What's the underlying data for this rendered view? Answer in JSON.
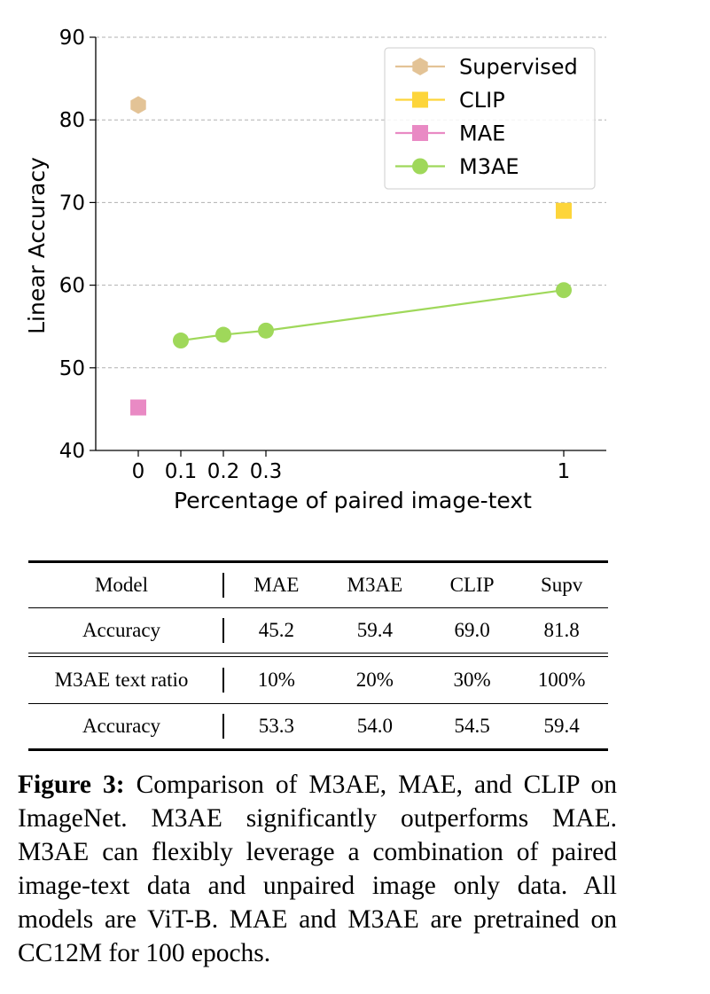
{
  "chart_data": {
    "type": "scatter",
    "xlabel": "Percentage of paired image-text",
    "ylabel": "Linear Accuracy",
    "xlim": [
      -0.1,
      1.1
    ],
    "ylim": [
      40,
      90
    ],
    "xticks": [
      0,
      0.1,
      0.2,
      0.3,
      1
    ],
    "xtick_labels": [
      "0",
      "0.1",
      "0.2",
      "0.3",
      "1"
    ],
    "yticks": [
      40,
      50,
      60,
      70,
      80,
      90
    ],
    "grid": "horizontal dashed",
    "legend_position": "top-right",
    "series": [
      {
        "name": "Supervised",
        "marker": "hexagon",
        "color": "#e3c396",
        "line": false,
        "x": [
          0
        ],
        "y": [
          81.8
        ]
      },
      {
        "name": "CLIP",
        "marker": "square",
        "color": "#fdd53a",
        "line": false,
        "x": [
          1
        ],
        "y": [
          69.0
        ]
      },
      {
        "name": "MAE",
        "marker": "square",
        "color": "#e98ac4",
        "line": false,
        "x": [
          0
        ],
        "y": [
          45.2
        ]
      },
      {
        "name": "M3AE",
        "marker": "circle",
        "color": "#9fd85a",
        "line": true,
        "x": [
          0.1,
          0.2,
          0.3,
          1
        ],
        "y": [
          53.3,
          54.0,
          54.5,
          59.4
        ]
      }
    ]
  },
  "table": {
    "rows": [
      [
        "Model",
        "MAE",
        "M3AE",
        "CLIP",
        "Supv"
      ],
      [
        "Accuracy",
        "45.2",
        "59.4",
        "69.0",
        "81.8"
      ],
      [
        "M3AE text ratio",
        "10%",
        "20%",
        "30%",
        "100%"
      ],
      [
        "Accuracy",
        "53.3",
        "54.0",
        "54.5",
        "59.4"
      ]
    ]
  },
  "caption": {
    "label": "Figure 3:",
    "text": " Comparison of M3AE, MAE, and CLIP on ImageNet.  M3AE significantly outperforms MAE. M3AE can flexibly leverage a combination of paired image-text data and unpaired image only data. All models are ViT-B. MAE and M3AE are pretrained on CC12M for 100 epochs."
  }
}
